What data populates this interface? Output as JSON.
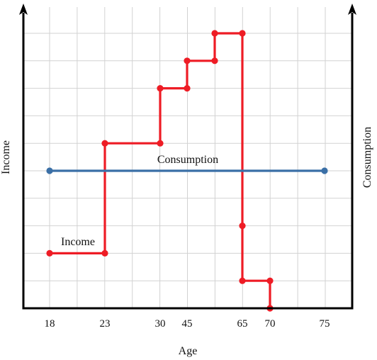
{
  "chart_data": {
    "type": "line",
    "title": "",
    "xlabel": "Age",
    "ylabel_left": "Income",
    "ylabel_right": "Consumption",
    "x_ticks": [
      "18",
      "23",
      "30",
      "45",
      "65",
      "70",
      "75"
    ],
    "y_ticks": [],
    "grid": true,
    "ylim": [
      0,
      10
    ],
    "series": [
      {
        "name": "Income",
        "color": "#ee1c25",
        "step": true,
        "points": [
          {
            "x": 18,
            "y": 2
          },
          {
            "x": 23,
            "y": 2
          },
          {
            "x": 23,
            "y": 6
          },
          {
            "x": 30,
            "y": 6
          },
          {
            "x": 30,
            "y": 8
          },
          {
            "x": 45,
            "y": 8
          },
          {
            "x": 45,
            "y": 9
          },
          {
            "x": 55,
            "y": 9
          },
          {
            "x": 55,
            "y": 10
          },
          {
            "x": 65,
            "y": 10
          },
          {
            "x": 65,
            "y": 3
          },
          {
            "x": 65,
            "y": 1
          },
          {
            "x": 70,
            "y": 1
          },
          {
            "x": 70,
            "y": 0
          }
        ]
      },
      {
        "name": "Consumption",
        "color": "#3a6fa6",
        "step": false,
        "points": [
          {
            "x": 18,
            "y": 5
          },
          {
            "x": 75,
            "y": 5
          }
        ]
      }
    ]
  }
}
